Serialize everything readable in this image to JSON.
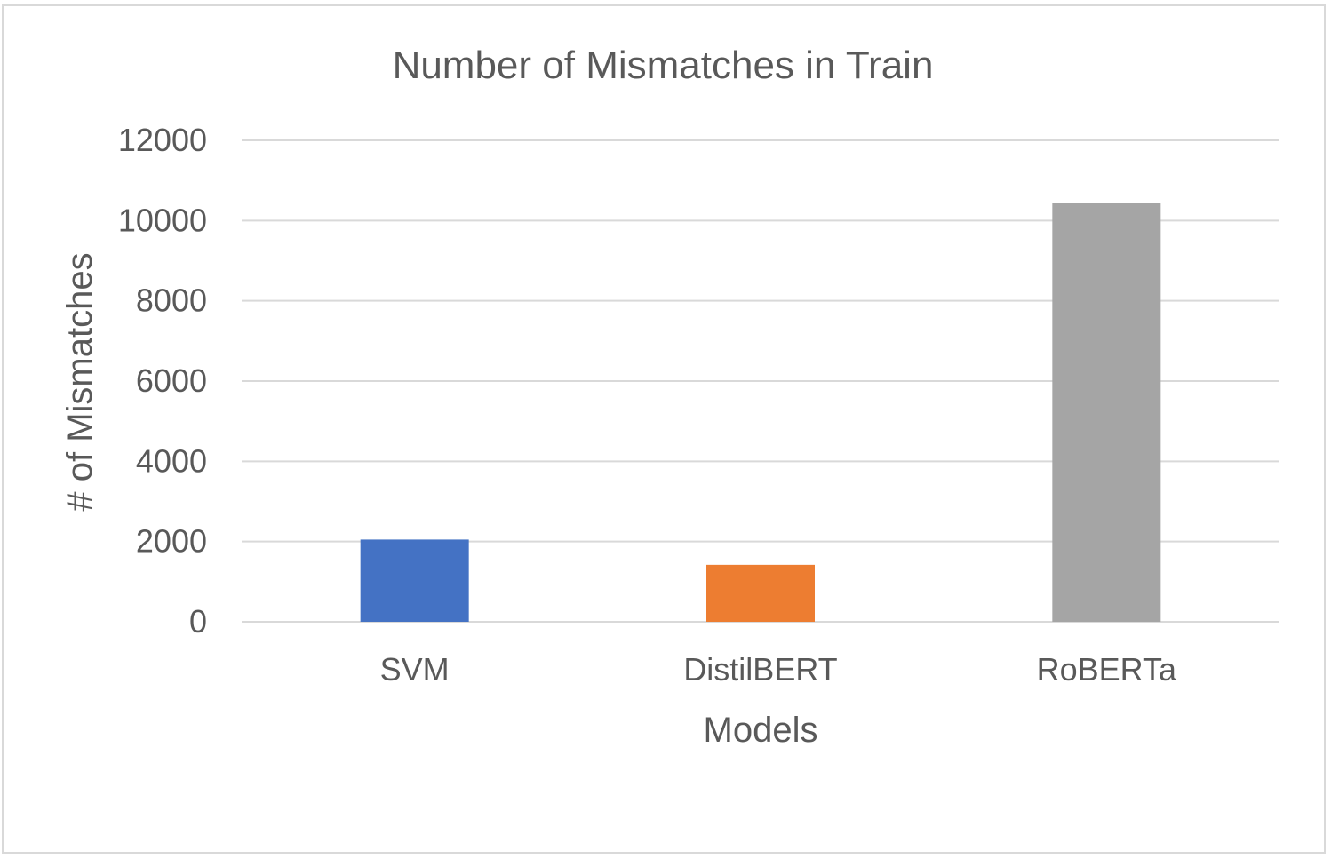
{
  "chart_data": {
    "type": "bar",
    "title": "Number of Mismatches in Train",
    "xlabel": "Models",
    "ylabel": "# of Mismatches",
    "categories": [
      "SVM",
      "DistilBERT",
      "RoBERTa"
    ],
    "values": [
      2050,
      1420,
      10450
    ],
    "colors": [
      "#4472c4",
      "#ed7d31",
      "#a5a5a5"
    ],
    "ylim": [
      0,
      12000
    ],
    "yticks": [
      0,
      2000,
      4000,
      6000,
      8000,
      10000,
      12000
    ],
    "grid": true,
    "legend": "none"
  },
  "colors": {
    "text": "#595959",
    "grid": "#d9d9d9",
    "frame": "#d9d9d9"
  }
}
